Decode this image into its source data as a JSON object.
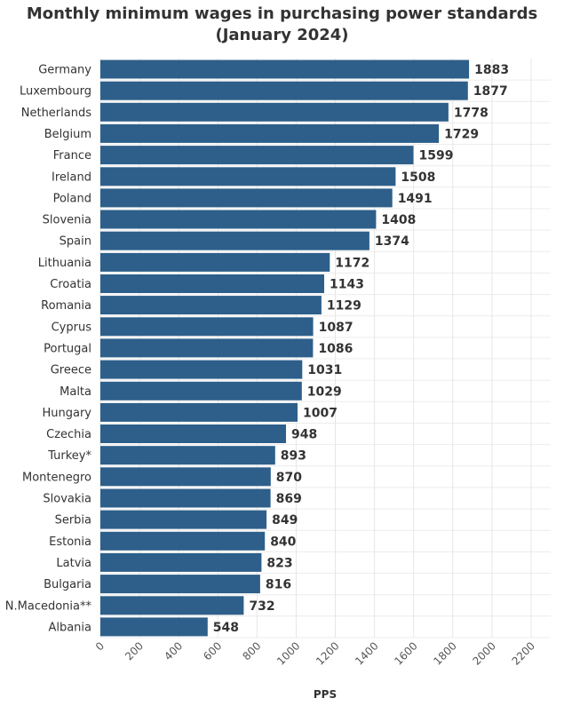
{
  "chart_data": {
    "type": "bar",
    "orientation": "horizontal",
    "title_line1": "Monthly minimum wages in purchasing power standards",
    "title_line2": "(January 2024)",
    "xlabel": "PPS",
    "ylabel": "",
    "xlim": [
      0,
      2300
    ],
    "xticks": [
      0,
      200,
      400,
      600,
      800,
      1000,
      1200,
      1400,
      1600,
      1800,
      2000,
      2200
    ],
    "grid": true,
    "bar_color": "#2d5f8a",
    "categories": [
      "Germany",
      "Luxembourg",
      "Netherlands",
      "Belgium",
      "France",
      "Ireland",
      "Poland",
      "Slovenia",
      "Spain",
      "Lithuania",
      "Croatia",
      "Romania",
      "Cyprus",
      "Portugal",
      "Greece",
      "Malta",
      "Hungary",
      "Czechia",
      "Turkey*",
      "Montenegro",
      "Slovakia",
      "Serbia",
      "Estonia",
      "Latvia",
      "Bulgaria",
      "N.Macedonia**",
      "Albania"
    ],
    "values": [
      1883,
      1877,
      1778,
      1729,
      1599,
      1508,
      1491,
      1408,
      1374,
      1172,
      1143,
      1129,
      1087,
      1086,
      1031,
      1029,
      1007,
      948,
      893,
      870,
      869,
      849,
      840,
      823,
      816,
      732,
      548
    ]
  }
}
